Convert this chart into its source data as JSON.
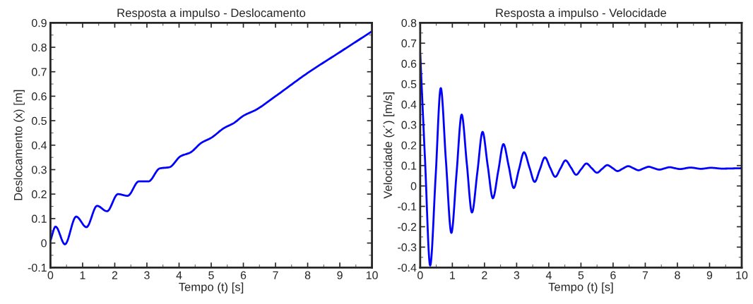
{
  "chart_data": [
    {
      "type": "line",
      "title": "Resposta a impulso - Deslocamento",
      "xlabel": "Tempo (t) [s]",
      "ylabel": "Deslocamento (x) [m]",
      "xlim": [
        0,
        10
      ],
      "ylim": [
        -0.1,
        0.9
      ],
      "xticks": [
        0,
        1,
        2,
        3,
        4,
        5,
        6,
        7,
        8,
        9,
        10
      ],
      "yticks": [
        -0.1,
        0,
        0.1,
        0.2,
        0.3,
        0.4,
        0.5,
        0.6,
        0.7,
        0.8,
        0.9
      ],
      "grid": false,
      "legend": false,
      "series": [
        {
          "color": "#0000ff",
          "x": [
            0,
            0.16,
            0.45,
            0.8,
            1.12,
            1.45,
            1.76,
            2.1,
            2.4,
            2.75,
            3.05,
            3.4,
            3.7,
            4.05,
            4.35,
            4.7,
            5.0,
            5.4,
            5.7,
            6.0,
            6.4,
            7.0,
            8.0,
            9.0,
            10
          ],
          "values": [
            0.01,
            0.067,
            -0.005,
            0.108,
            0.065,
            0.152,
            0.13,
            0.2,
            0.193,
            0.252,
            0.252,
            0.305,
            0.31,
            0.355,
            0.37,
            0.41,
            0.43,
            0.47,
            0.49,
            0.52,
            0.545,
            0.6,
            0.695,
            0.78,
            0.865
          ]
        }
      ]
    },
    {
      "type": "line",
      "title": "Resposta a impulso - Velocidade",
      "xlabel": "Tempo (t) [s]",
      "ylabel": "Velocidade (x´) [m/s]",
      "xlim": [
        0,
        10
      ],
      "ylim": [
        -0.4,
        0.8
      ],
      "xticks": [
        0,
        1,
        2,
        3,
        4,
        5,
        6,
        7,
        8,
        9,
        10
      ],
      "yticks": [
        -0.4,
        -0.3,
        -0.2,
        -0.1,
        0,
        0.1,
        0.2,
        0.3,
        0.4,
        0.5,
        0.6,
        0.7,
        0.8
      ],
      "grid": false,
      "legend": false,
      "series": [
        {
          "color": "#0000ff",
          "x": [
            0,
            0.15,
            0.31,
            0.48,
            0.64,
            0.8,
            0.97,
            1.13,
            1.29,
            1.45,
            1.61,
            1.78,
            1.94,
            2.1,
            2.26,
            2.43,
            2.59,
            2.75,
            2.91,
            3.07,
            3.23,
            3.4,
            3.56,
            3.72,
            3.88,
            4.04,
            4.2,
            4.36,
            4.52,
            4.69,
            4.85,
            5.01,
            5.17,
            5.33,
            5.5,
            5.66,
            5.82,
            5.98,
            6.14,
            6.3,
            6.47,
            6.63,
            6.79,
            6.95,
            7.11,
            7.27,
            7.44,
            7.6,
            7.76,
            7.92,
            8.08,
            8.41,
            8.73,
            9.05,
            9.38,
            10
          ],
          "values": [
            0.65,
            0.13,
            -0.39,
            0.045,
            0.48,
            0.125,
            -0.23,
            0.06,
            0.35,
            0.11,
            -0.13,
            0.07,
            0.265,
            0.1,
            -0.06,
            0.075,
            0.205,
            0.1,
            -0.01,
            0.08,
            0.165,
            0.09,
            0.02,
            0.08,
            0.14,
            0.09,
            0.045,
            0.085,
            0.125,
            0.09,
            0.055,
            0.083,
            0.11,
            0.088,
            0.065,
            0.084,
            0.102,
            0.088,
            0.073,
            0.085,
            0.097,
            0.087,
            0.077,
            0.086,
            0.094,
            0.087,
            0.08,
            0.086,
            0.092,
            0.087,
            0.083,
            0.09,
            0.084,
            0.089,
            0.085,
            0.087
          ]
        }
      ]
    }
  ]
}
